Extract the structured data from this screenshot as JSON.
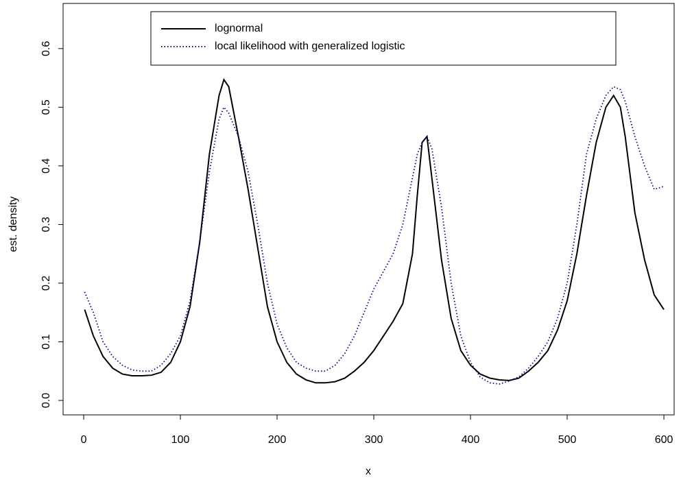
{
  "chart_data": {
    "type": "line",
    "xlabel": "x",
    "ylabel": "est. density",
    "x": [
      1,
      10,
      20,
      30,
      40,
      50,
      60,
      70,
      80,
      90,
      100,
      110,
      120,
      130,
      140,
      145,
      150,
      160,
      170,
      180,
      190,
      200,
      210,
      220,
      230,
      240,
      250,
      260,
      270,
      280,
      290,
      300,
      310,
      320,
      330,
      340,
      345,
      350,
      355,
      360,
      370,
      380,
      390,
      400,
      410,
      420,
      430,
      440,
      450,
      460,
      470,
      480,
      490,
      500,
      510,
      520,
      530,
      540,
      548,
      555,
      560,
      570,
      580,
      590,
      600
    ],
    "series": [
      {
        "name": "lognormal",
        "color": "#000000",
        "dash": "solid",
        "values": [
          0.155,
          0.11,
          0.075,
          0.055,
          0.045,
          0.042,
          0.042,
          0.043,
          0.048,
          0.065,
          0.1,
          0.16,
          0.27,
          0.42,
          0.52,
          0.547,
          0.535,
          0.45,
          0.36,
          0.26,
          0.16,
          0.1,
          0.065,
          0.045,
          0.035,
          0.03,
          0.03,
          0.032,
          0.038,
          0.05,
          0.065,
          0.085,
          0.11,
          0.135,
          0.165,
          0.25,
          0.35,
          0.44,
          0.45,
          0.38,
          0.24,
          0.14,
          0.085,
          0.06,
          0.045,
          0.038,
          0.035,
          0.034,
          0.038,
          0.05,
          0.065,
          0.085,
          0.12,
          0.17,
          0.25,
          0.35,
          0.44,
          0.5,
          0.52,
          0.5,
          0.45,
          0.32,
          0.24,
          0.18,
          0.155
        ]
      },
      {
        "name": "local likelihood with generalized logistic",
        "color": "#00008b",
        "dash": "dotted",
        "values": [
          0.185,
          0.15,
          0.1,
          0.075,
          0.06,
          0.052,
          0.05,
          0.05,
          0.06,
          0.08,
          0.11,
          0.17,
          0.27,
          0.39,
          0.48,
          0.5,
          0.49,
          0.45,
          0.39,
          0.3,
          0.2,
          0.13,
          0.09,
          0.065,
          0.055,
          0.05,
          0.05,
          0.06,
          0.08,
          0.11,
          0.15,
          0.19,
          0.22,
          0.25,
          0.3,
          0.38,
          0.42,
          0.44,
          0.45,
          0.43,
          0.33,
          0.2,
          0.11,
          0.065,
          0.04,
          0.03,
          0.028,
          0.033,
          0.04,
          0.055,
          0.075,
          0.1,
          0.14,
          0.2,
          0.3,
          0.42,
          0.48,
          0.52,
          0.535,
          0.53,
          0.51,
          0.45,
          0.4,
          0.36,
          0.365
        ]
      }
    ],
    "xlim": [
      -21.3,
      610.6
    ],
    "ylim": [
      -0.0246,
      0.677
    ],
    "xticks": [
      0,
      100,
      200,
      300,
      400,
      500,
      600
    ],
    "yticks": [
      {
        "value": 0,
        "label": "0.0"
      },
      0.1,
      0.2,
      0.3,
      0.4,
      0.5,
      0.6
    ],
    "legend": "top",
    "grid": false
  }
}
